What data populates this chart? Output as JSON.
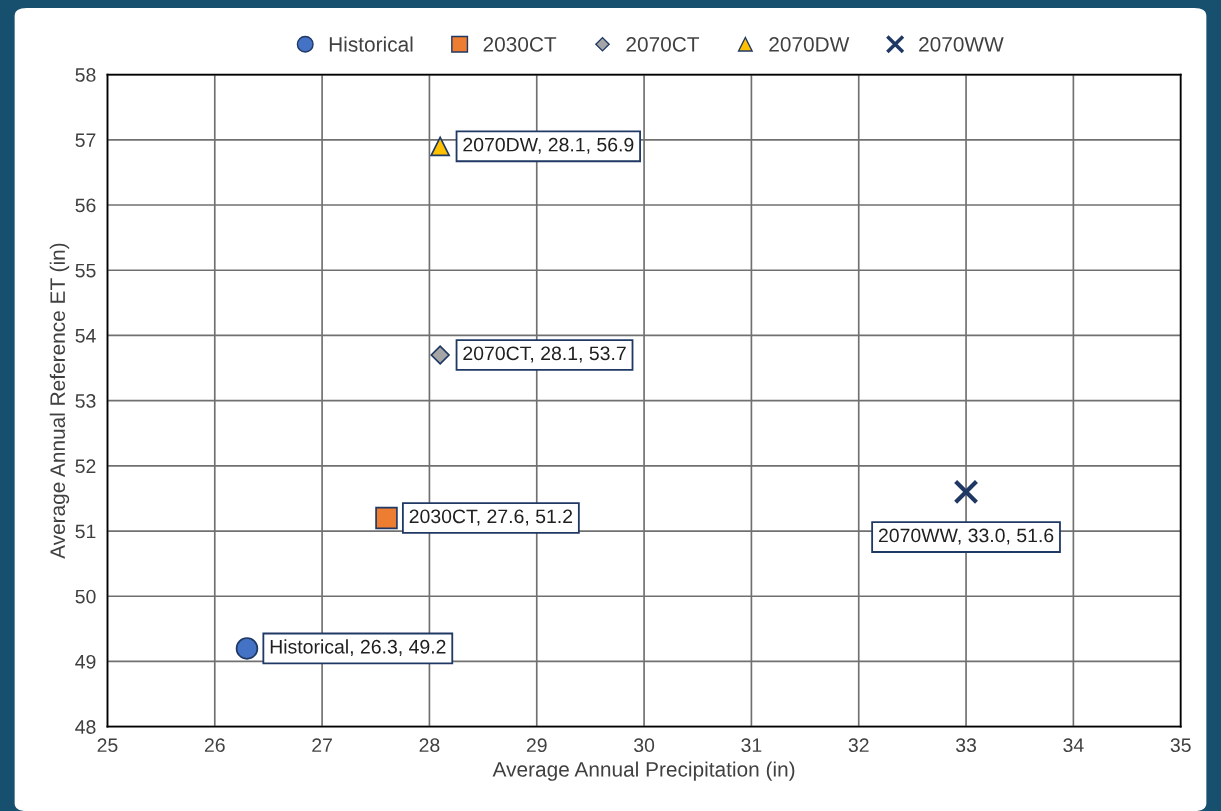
{
  "chart_data": {
    "type": "scatter",
    "xlabel": "Average Annual Precipitation (in)",
    "ylabel": "Average Annual Reference ET (in)",
    "xlim": [
      25,
      35
    ],
    "xticks": [
      25,
      26,
      27,
      28,
      29,
      30,
      31,
      32,
      33,
      34,
      35
    ],
    "ylim": [
      48,
      58
    ],
    "yticks": [
      48,
      49,
      50,
      51,
      52,
      53,
      54,
      55,
      56,
      57,
      58
    ],
    "grid": true,
    "legend": "top",
    "series": [
      {
        "name": "Historical",
        "color": "#4472c4",
        "marker": "circle",
        "x": [
          26.3
        ],
        "values": [
          49.2
        ],
        "value_labels": [
          "Historical, 26.3, 49.2"
        ]
      },
      {
        "name": "2030CT",
        "color": "#ed7d31",
        "marker": "square",
        "x": [
          27.6
        ],
        "values": [
          51.2
        ],
        "value_labels": [
          "2030CT, 27.6, 51.2"
        ]
      },
      {
        "name": "2070CT",
        "color": "#a5a5a5",
        "marker": "diamond",
        "x": [
          28.1
        ],
        "values": [
          53.7
        ],
        "value_labels": [
          "2070CT, 28.1, 53.7"
        ]
      },
      {
        "name": "2070DW",
        "color": "#ffc000",
        "marker": "triangle",
        "x": [
          28.1
        ],
        "values": [
          56.9
        ],
        "value_labels": [
          "2070DW, 28.1, 56.9"
        ]
      },
      {
        "name": "2070WW",
        "color": "#1f3864",
        "marker": "cross",
        "x": [
          33.0
        ],
        "values": [
          51.6
        ],
        "value_labels": [
          "2070WW, 33.0, 51.6"
        ]
      }
    ]
  }
}
